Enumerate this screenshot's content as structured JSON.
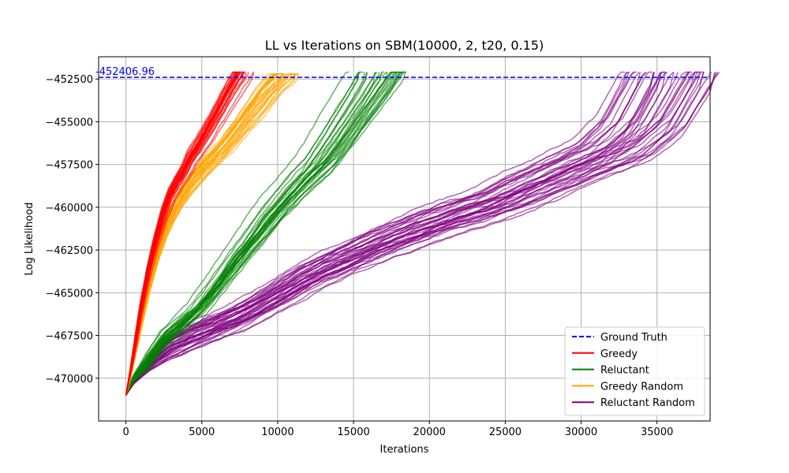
{
  "chart_data": {
    "type": "line",
    "title": "LL vs Iterations on SBM(10000, 2, t20, 0.15)",
    "xlabel": "Iterations",
    "ylabel": "Log Likelihood",
    "xlim": [
      -1800,
      38500
    ],
    "ylim": [
      -472500,
      -451200
    ],
    "xticks": [
      0,
      5000,
      10000,
      15000,
      20000,
      25000,
      30000,
      35000
    ],
    "xtick_labels": [
      "0",
      "5000",
      "10000",
      "15000",
      "20000",
      "25000",
      "30000",
      "35000"
    ],
    "yticks": [
      -470000,
      -467500,
      -465000,
      -462500,
      -460000,
      -457500,
      -455000,
      -452500
    ],
    "ytick_labels": [
      "−470000",
      "−467500",
      "−465000",
      "−462500",
      "−460000",
      "−457500",
      "−455000",
      "−452500"
    ],
    "grid": true,
    "legend_position": "lower right",
    "ground_truth": {
      "name": "Ground Truth",
      "value": -452406.96,
      "label": "-452406.96",
      "color": "#0000ff",
      "style": "dashed"
    },
    "series": [
      {
        "name": "Greedy",
        "color": "#ff0000",
        "runs": 30,
        "x": [
          0,
          200,
          500,
          1000,
          1500,
          2000,
          2500,
          3000,
          3500,
          4000,
          4300,
          5000,
          6000,
          7000,
          7800
        ],
        "y": [
          -471000,
          -470100,
          -468600,
          -466000,
          -463800,
          -462000,
          -460500,
          -459300,
          -458500,
          -457800,
          -457200,
          -456300,
          -454800,
          -453200,
          -452100
        ],
        "x_jitter": 0.08,
        "y_jitter": 400
      },
      {
        "name": "Reluctant",
        "color": "#008000",
        "runs": 30,
        "x": [
          0,
          500,
          1500,
          2500,
          3500,
          4500,
          5500,
          6500,
          7500,
          8500,
          9500,
          10500,
          11500,
          12500,
          14000,
          15500,
          16500
        ],
        "y": [
          -471000,
          -470000,
          -468900,
          -467700,
          -466900,
          -466100,
          -465000,
          -463800,
          -462600,
          -461500,
          -460300,
          -459300,
          -458300,
          -457400,
          -455500,
          -453500,
          -452100
        ],
        "x_jitter": 0.12,
        "y_jitter": 500
      },
      {
        "name": "Greedy Random",
        "color": "#ffa500",
        "runs": 30,
        "x": [
          0,
          200,
          500,
          1000,
          1500,
          2000,
          2500,
          3000,
          3500,
          4000,
          4500,
          5000,
          5500,
          6500,
          8000,
          9500,
          10500
        ],
        "y": [
          -471000,
          -470300,
          -468900,
          -466600,
          -464500,
          -462900,
          -461500,
          -460500,
          -459700,
          -459000,
          -458400,
          -457900,
          -457400,
          -456500,
          -454800,
          -453100,
          -452200
        ],
        "x_jitter": 0.1,
        "y_jitter": 450
      },
      {
        "name": "Reluctant Random",
        "color": "#800080",
        "runs": 40,
        "x": [
          0,
          500,
          1500,
          3000,
          5000,
          7500,
          10000,
          12500,
          15000,
          17500,
          20000,
          22500,
          25000,
          27500,
          30000,
          32500,
          34500,
          36500
        ],
        "y": [
          -471000,
          -470200,
          -469200,
          -468100,
          -467300,
          -466400,
          -465200,
          -463900,
          -462900,
          -461900,
          -461100,
          -460300,
          -459600,
          -458600,
          -457600,
          -456700,
          -455200,
          -452100
        ],
        "x_jitter": 0.1,
        "y_jitter": 700
      }
    ]
  }
}
